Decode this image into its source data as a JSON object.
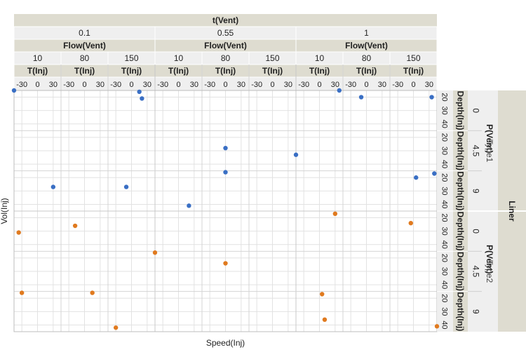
{
  "chart_data": {
    "type": "scatter",
    "title": "",
    "xlabel": "Speed(Inj)",
    "ylabel": "Vol(Inj)",
    "column_factors": {
      "t_vent": {
        "name": "t(Vent)",
        "levels": [
          "0.1",
          "0.55",
          "1"
        ]
      },
      "flow_vent": {
        "name": "Flow(Vent)",
        "levels": [
          "10",
          "80",
          "150"
        ]
      },
      "t_inj": {
        "name": "T(Inj)",
        "ticks": [
          "-30",
          "0",
          "30"
        ],
        "range": [
          -45,
          45
        ]
      }
    },
    "row_factors": {
      "liner": {
        "name": "Liner",
        "levels": [
          "Type1",
          "Type2"
        ]
      },
      "p_vent": {
        "name": "P(Vent)",
        "levels": [
          "0",
          "4.5",
          "9"
        ]
      },
      "depth_inj": {
        "name": "Depth(Inj)",
        "ticks": [
          "20",
          "30",
          "40"
        ],
        "range": [
          15,
          45
        ]
      }
    },
    "series": [
      {
        "name": "Type1",
        "color": "#3a6fc4"
      },
      {
        "name": "Type2",
        "color": "#e07a1f"
      }
    ],
    "points": [
      {
        "tvent": 0,
        "flow": 0,
        "liner": 0,
        "pvent": 0,
        "t_inj": -45,
        "depth": 15
      },
      {
        "tvent": 0,
        "flow": 2,
        "liner": 0,
        "pvent": 0,
        "t_inj": 15,
        "depth": 16
      },
      {
        "tvent": 0,
        "flow": 2,
        "liner": 0,
        "pvent": 0,
        "t_inj": 20,
        "depth": 21
      },
      {
        "tvent": 1,
        "flow": 1,
        "liner": 0,
        "pvent": 1,
        "t_inj": 0,
        "depth": 28
      },
      {
        "tvent": 2,
        "flow": 0,
        "liner": 0,
        "pvent": 1,
        "t_inj": -45,
        "depth": 33
      },
      {
        "tvent": 2,
        "flow": 0,
        "liner": 0,
        "pvent": 0,
        "t_inj": 38,
        "depth": 15
      },
      {
        "tvent": 2,
        "flow": 1,
        "liner": 0,
        "pvent": 0,
        "t_inj": -10,
        "depth": 20
      },
      {
        "tvent": 2,
        "flow": 2,
        "liner": 0,
        "pvent": 0,
        "t_inj": 35,
        "depth": 20
      },
      {
        "tvent": 2,
        "flow": 2,
        "liner": 0,
        "pvent": 2,
        "t_inj": 40,
        "depth": 17
      },
      {
        "tvent": 2,
        "flow": 2,
        "liner": 0,
        "pvent": 2,
        "t_inj": 5,
        "depth": 20
      },
      {
        "tvent": 0,
        "flow": 0,
        "liner": 0,
        "pvent": 2,
        "t_inj": 30,
        "depth": 27
      },
      {
        "tvent": 0,
        "flow": 2,
        "liner": 0,
        "pvent": 2,
        "t_inj": -10,
        "depth": 27
      },
      {
        "tvent": 1,
        "flow": 0,
        "liner": 0,
        "pvent": 2,
        "t_inj": 20,
        "depth": 41
      },
      {
        "tvent": 0,
        "flow": 0,
        "liner": 1,
        "pvent": 0,
        "t_inj": -36,
        "depth": 31
      },
      {
        "tvent": 0,
        "flow": 1,
        "liner": 1,
        "pvent": 0,
        "t_inj": -18,
        "depth": 26
      },
      {
        "tvent": 0,
        "flow": 2,
        "liner": 1,
        "pvent": 1,
        "t_inj": 45,
        "depth": 16
      },
      {
        "tvent": 0,
        "flow": 0,
        "liner": 1,
        "pvent": 2,
        "t_inj": -30,
        "depth": 16
      },
      {
        "tvent": 0,
        "flow": 1,
        "liner": 1,
        "pvent": 2,
        "t_inj": 15,
        "depth": 16
      },
      {
        "tvent": 0,
        "flow": 2,
        "liner": 1,
        "pvent": 2,
        "t_inj": -30,
        "depth": 42
      },
      {
        "tvent": 1,
        "flow": 1,
        "liner": 0,
        "pvent": 2,
        "t_inj": 0,
        "depth": 16
      },
      {
        "tvent": 1,
        "flow": 1,
        "liner": 1,
        "pvent": 1,
        "t_inj": 0,
        "depth": 24
      },
      {
        "tvent": 2,
        "flow": 0,
        "liner": 1,
        "pvent": 0,
        "t_inj": 30,
        "depth": 17
      },
      {
        "tvent": 2,
        "flow": 2,
        "liner": 1,
        "pvent": 0,
        "t_inj": -5,
        "depth": 24
      },
      {
        "tvent": 2,
        "flow": 0,
        "liner": 1,
        "pvent": 2,
        "t_inj": 5,
        "depth": 17
      },
      {
        "tvent": 2,
        "flow": 0,
        "liner": 1,
        "pvent": 2,
        "t_inj": 10,
        "depth": 36
      },
      {
        "tvent": 2,
        "flow": 2,
        "liner": 1,
        "pvent": 2,
        "t_inj": 45,
        "depth": 41
      }
    ]
  }
}
